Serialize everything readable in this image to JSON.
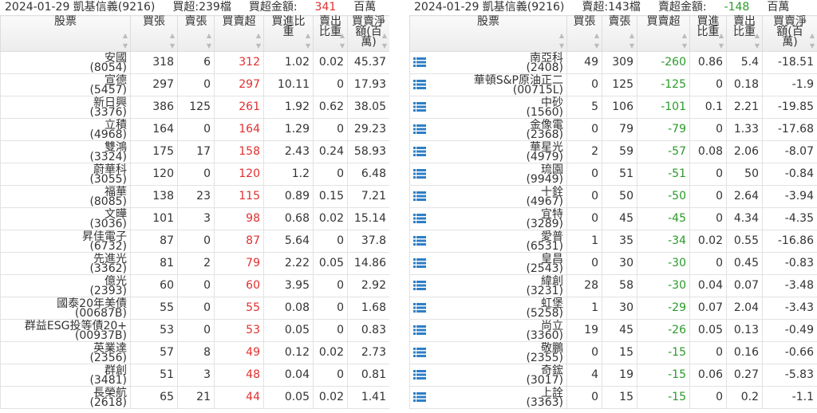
{
  "tables": [
    {
      "title": "2024-01-29 凱基信義(9216)",
      "count": "買超:239檔",
      "amount_label": "買超金額:",
      "amount": "341",
      "amount_unit": "百萬",
      "columns": [
        "股票",
        "買張",
        "賣張",
        "買賣超",
        "買進比重",
        "賣出比重",
        "買賣淨額(百萬)"
      ],
      "rows": [
        {
          "name": "安國",
          "code": "(8054)",
          "cells": [
            318,
            6,
            312,
            1.02,
            0.02,
            45.37
          ]
        },
        {
          "name": "宣德",
          "code": "(5457)",
          "cells": [
            297,
            0,
            297,
            10.11,
            0,
            17.93
          ]
        },
        {
          "name": "新日興",
          "code": "(3376)",
          "cells": [
            386,
            125,
            261,
            1.92,
            0.62,
            38.05
          ]
        },
        {
          "name": "立積",
          "code": "(4968)",
          "cells": [
            164,
            0,
            164,
            1.29,
            0,
            29.23
          ]
        },
        {
          "name": "雙鴻",
          "code": "(3324)",
          "cells": [
            175,
            17,
            158,
            2.43,
            0.24,
            58.93
          ]
        },
        {
          "name": "蔚華科",
          "code": "(3055)",
          "cells": [
            120,
            0,
            120,
            1.2,
            0,
            6.48
          ]
        },
        {
          "name": "福華",
          "code": "(8085)",
          "cells": [
            138,
            23,
            115,
            0.89,
            0.15,
            7.21
          ]
        },
        {
          "name": "文曄",
          "code": "(3036)",
          "cells": [
            101,
            3,
            98,
            0.68,
            0.02,
            15.14
          ]
        },
        {
          "name": "昇佳電子",
          "code": "(6732)",
          "cells": [
            87,
            0,
            87,
            5.64,
            0,
            37.8
          ]
        },
        {
          "name": "先進光",
          "code": "(3362)",
          "cells": [
            81,
            2,
            79,
            2.22,
            0.05,
            14.86
          ]
        },
        {
          "name": "億光",
          "code": "(2393)",
          "cells": [
            60,
            0,
            60,
            3.95,
            0,
            2.92
          ]
        },
        {
          "name": "國泰20年美債",
          "code": "(00687B)",
          "cells": [
            55,
            0,
            55,
            0.08,
            0,
            1.68
          ]
        },
        {
          "name": "群益ESG投等債20+",
          "code": "(00937B)",
          "cells": [
            53,
            0,
            53,
            0.05,
            0,
            0.83
          ]
        },
        {
          "name": "英業達",
          "code": "(2356)",
          "cells": [
            57,
            8,
            49,
            0.12,
            0.02,
            2.73
          ]
        },
        {
          "name": "群創",
          "code": "(3481)",
          "cells": [
            51,
            3,
            48,
            0.04,
            0,
            0.81
          ]
        },
        {
          "name": "長榮航",
          "code": "(2618)",
          "cells": [
            65,
            21,
            44,
            0.05,
            0.02,
            1.41
          ]
        }
      ]
    },
    {
      "title": "2024-01-29 凱基信義(9216)",
      "count": "賣超:143檔",
      "amount_label": "賣超金額:",
      "amount": "-148",
      "amount_unit": "百萬",
      "columns": [
        "股票",
        "買張",
        "賣張",
        "買賣超",
        "買進比重",
        "賣出比重",
        "買賣淨額(百萬)"
      ],
      "rows": [
        {
          "name": "南亞科",
          "code": "(2408)",
          "cells": [
            49,
            309,
            -260,
            0.86,
            5.4,
            -18.51
          ]
        },
        {
          "name": "華頓S&P原油正二",
          "code": "(00715L)",
          "cells": [
            0,
            125,
            -125,
            0,
            0.18,
            -1.9
          ]
        },
        {
          "name": "中砂",
          "code": "(1560)",
          "cells": [
            5,
            106,
            -101,
            0.1,
            2.21,
            -19.85
          ]
        },
        {
          "name": "金像電",
          "code": "(2368)",
          "cells": [
            0,
            79,
            -79,
            0,
            1.33,
            -17.68
          ]
        },
        {
          "name": "華星光",
          "code": "(4979)",
          "cells": [
            2,
            59,
            -57,
            0.08,
            2.06,
            -8.07
          ]
        },
        {
          "name": "琉園",
          "code": "(9949)",
          "cells": [
            0,
            51,
            -51,
            0,
            50,
            -0.84
          ]
        },
        {
          "name": "十銓",
          "code": "(4967)",
          "cells": [
            0,
            50,
            -50,
            0,
            2.64,
            -3.94
          ]
        },
        {
          "name": "宜特",
          "code": "(3289)",
          "cells": [
            0,
            45,
            -45,
            0,
            4.34,
            -4.35
          ]
        },
        {
          "name": "愛普",
          "code": "(6531)",
          "cells": [
            1,
            35,
            -34,
            0.02,
            0.55,
            -16.86
          ]
        },
        {
          "name": "皇昌",
          "code": "(2543)",
          "cells": [
            0,
            30,
            -30,
            0,
            0.45,
            -0.83
          ]
        },
        {
          "name": "緯創",
          "code": "(3231)",
          "cells": [
            28,
            58,
            -30,
            0.04,
            0.07,
            -3.48
          ]
        },
        {
          "name": "虹堡",
          "code": "(5258)",
          "cells": [
            1,
            30,
            -29,
            0.07,
            2.04,
            -3.43
          ]
        },
        {
          "name": "尚立",
          "code": "(3360)",
          "cells": [
            19,
            45,
            -26,
            0.05,
            0.13,
            -0.49
          ]
        },
        {
          "name": "敬鵬",
          "code": "(2355)",
          "cells": [
            0,
            15,
            -15,
            0,
            0.16,
            -0.66
          ]
        },
        {
          "name": "奇鋐",
          "code": "(3017)",
          "cells": [
            4,
            19,
            -15,
            0.06,
            0.27,
            -5.83
          ]
        },
        {
          "name": "上詮",
          "code": "(3363)",
          "cells": [
            0,
            15,
            -15,
            0,
            0.2,
            -1.1
          ]
        }
      ]
    }
  ]
}
